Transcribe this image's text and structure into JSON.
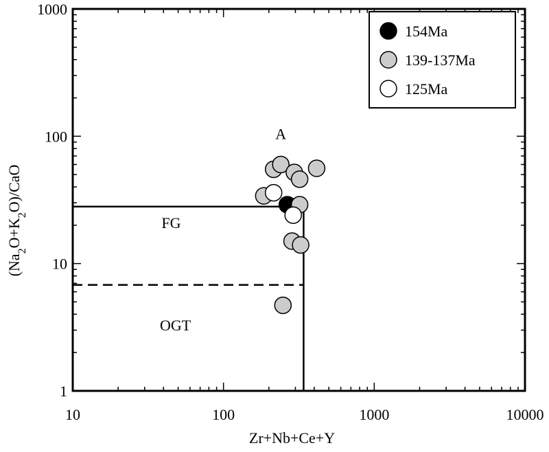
{
  "chart_data": {
    "type": "scatter",
    "xlabel": "Zr+Nb+Ce+Y",
    "ylabel_parts": [
      "(Na",
      "2",
      "O+K",
      "2",
      "O)/CaO"
    ],
    "xscale": "log",
    "yscale": "log",
    "xlim": [
      10,
      10000
    ],
    "ylim": [
      1,
      1000
    ],
    "x_ticks": [
      10,
      100,
      1000,
      10000
    ],
    "x_tick_labels": [
      "10",
      "100",
      "1000",
      "10000"
    ],
    "y_ticks": [
      1,
      10,
      100,
      1000
    ],
    "y_tick_labels": [
      "1",
      "10",
      "100",
      "1000"
    ],
    "grid": false,
    "legend_position": "top-right",
    "region_labels": [
      {
        "text": "A",
        "x": 240,
        "y": 105
      },
      {
        "text": "FG",
        "x": 45,
        "y": 21
      },
      {
        "text": "OGT",
        "x": 48,
        "y": 3.3
      }
    ],
    "boundaries": [
      {
        "style": "solid",
        "points": [
          [
            10,
            28
          ],
          [
            340,
            28
          ]
        ]
      },
      {
        "style": "solid",
        "points": [
          [
            340,
            28
          ],
          [
            340,
            1
          ]
        ]
      },
      {
        "style": "dashed",
        "points": [
          [
            10,
            6.8
          ],
          [
            340,
            6.8
          ]
        ]
      }
    ],
    "series": [
      {
        "name": "154Ma",
        "color": "#000000",
        "points": [
          [
            265,
            29
          ],
          [
            300,
            28
          ]
        ]
      },
      {
        "name": "139-137Ma",
        "color": "#cccccc",
        "points": [
          [
            215,
            55
          ],
          [
            240,
            60
          ],
          [
            295,
            52
          ],
          [
            320,
            46
          ],
          [
            415,
            56
          ],
          [
            185,
            34
          ],
          [
            320,
            29
          ],
          [
            285,
            15
          ],
          [
            325,
            14
          ],
          [
            248,
            4.7
          ]
        ]
      },
      {
        "name": "125Ma",
        "color": "#ffffff",
        "points": [
          [
            215,
            36
          ],
          [
            290,
            24
          ]
        ]
      }
    ]
  }
}
